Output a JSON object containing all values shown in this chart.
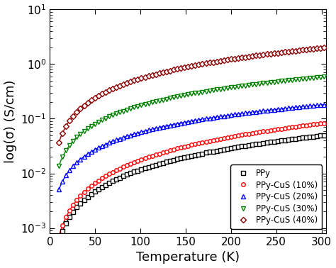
{
  "xlabel": "Temperature (K)",
  "ylabel": "log(σ) (S/cm)",
  "xlim": [
    10,
    305
  ],
  "ylim": [
    0.0008,
    10
  ],
  "series": [
    {
      "label": "PPy",
      "color": "black",
      "marker": "s",
      "a": 0.00055,
      "b": 0.78
    },
    {
      "label": "PPy-CuS (10%)",
      "color": "red",
      "marker": "o",
      "a": 0.00065,
      "b": 0.82
    },
    {
      "label": "PPy-CuS (20%)",
      "color": "blue",
      "marker": "^",
      "a": 0.0035,
      "b": 0.79
    },
    {
      "label": "PPy-CuS (30%)",
      "color": "green",
      "marker": "v",
      "a": 0.008,
      "b": 0.83
    },
    {
      "label": "PPy-CuS (40%)",
      "color": "#8B0000",
      "marker": "D",
      "a": 0.02,
      "b": 0.92
    }
  ],
  "legend_loc": "lower right",
  "xlabel_fontsize": 13,
  "ylabel_fontsize": 13,
  "tick_fontsize": 11,
  "legend_fontsize": 8.5,
  "marker_size": 4,
  "linewidth": 1.0,
  "marker_step": 2
}
